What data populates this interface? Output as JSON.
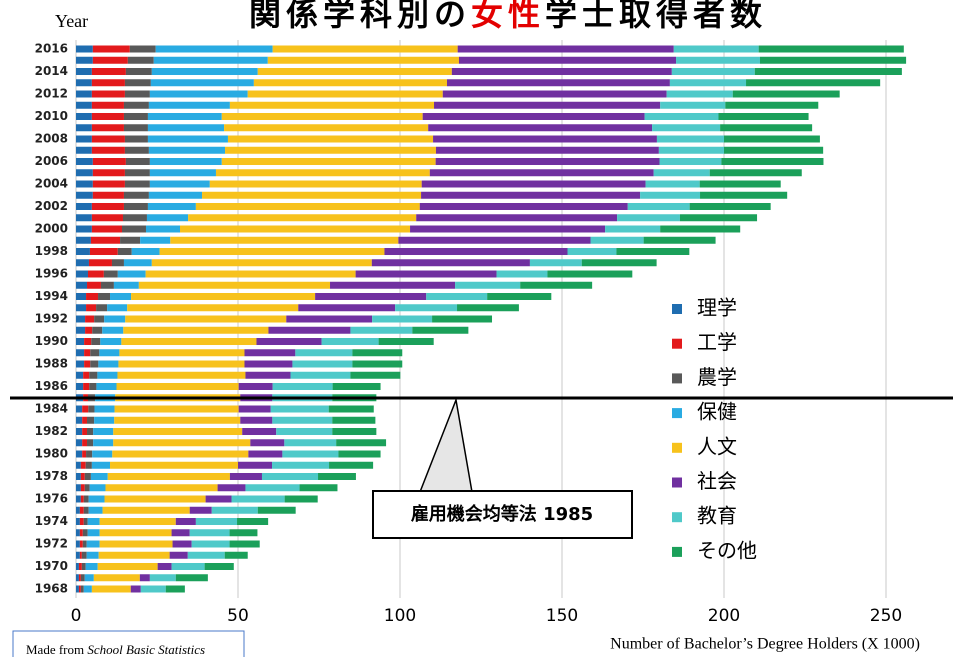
{
  "chart_data": {
    "type": "stacked-barh",
    "title_parts": [
      "関係学科別の",
      "女性",
      "学士取得者数"
    ],
    "y_label": "Year",
    "x_label": "Number of Bachelor’s Degree Holders (X 1000)",
    "annotation": "雇用機会均等法 1985",
    "source": {
      "lead": "Made from",
      "italic": "School Basic Statistics"
    },
    "categories": [
      1968,
      null,
      1970,
      null,
      1972,
      null,
      1974,
      null,
      1976,
      null,
      1978,
      null,
      1980,
      null,
      1982,
      null,
      1984,
      null,
      1986,
      null,
      1988,
      null,
      1990,
      null,
      1992,
      null,
      1994,
      null,
      1996,
      null,
      1998,
      null,
      2000,
      null,
      2002,
      null,
      2004,
      null,
      2006,
      null,
      2008,
      null,
      2010,
      null,
      2012,
      null,
      2014,
      null,
      2016
    ],
    "series": [
      {
        "name": "理学",
        "color": "#1f6db0",
        "values": [
          0.9,
          0.9,
          0.9,
          1.2,
          1.2,
          1.2,
          1.2,
          1.2,
          1.5,
          1.5,
          1.5,
          1.5,
          1.9,
          1.9,
          1.9,
          1.9,
          1.9,
          2.2,
          2.2,
          2.2,
          2.5,
          2.5,
          2.5,
          2.8,
          2.8,
          3.1,
          3.1,
          3.4,
          3.7,
          4.0,
          4.3,
          4.6,
          4.9,
          4.9,
          4.9,
          5.2,
          5.2,
          5.2,
          5.2,
          4.9,
          4.9,
          4.9,
          4.9,
          4.9,
          4.9,
          4.9,
          4.9,
          5.2,
          5.2
        ]
      },
      {
        "name": "工学",
        "color": "#e31a1c",
        "values": [
          0.6,
          0.6,
          0.9,
          0.6,
          0.9,
          0.9,
          1.2,
          1.2,
          0.9,
          1.2,
          1.2,
          1.5,
          1.2,
          1.5,
          1.5,
          1.5,
          1.9,
          1.5,
          1.9,
          1.9,
          1.9,
          1.9,
          2.2,
          2.2,
          2.8,
          3.1,
          3.7,
          4.3,
          4.9,
          7.1,
          8.6,
          9.0,
          9.3,
          9.6,
          9.9,
          9.6,
          9.9,
          9.9,
          10.2,
          10.2,
          10.2,
          9.9,
          9.9,
          9.9,
          10.2,
          10.2,
          10.5,
          10.8,
          11.4
        ]
      },
      {
        "name": "農学",
        "color": "#595959",
        "values": [
          0.9,
          1.2,
          1.2,
          1.5,
          1.2,
          1.5,
          1.2,
          1.5,
          1.5,
          1.5,
          1.9,
          1.9,
          1.9,
          1.9,
          1.9,
          2.2,
          1.9,
          2.2,
          2.2,
          2.5,
          2.5,
          2.8,
          2.8,
          3.1,
          3.1,
          3.4,
          3.7,
          4.0,
          4.3,
          3.7,
          4.3,
          6.2,
          7.4,
          7.4,
          7.4,
          7.7,
          7.7,
          7.7,
          7.4,
          7.4,
          7.1,
          7.4,
          7.4,
          7.7,
          7.7,
          8.0,
          8.0,
          8.0,
          8.0
        ]
      },
      {
        "name": "保健",
        "color": "#29abe2",
        "values": [
          2.5,
          2.8,
          3.7,
          3.7,
          4.0,
          3.7,
          3.7,
          4.3,
          4.9,
          4.9,
          5.2,
          5.6,
          6.2,
          6.2,
          6.2,
          6.2,
          6.2,
          6.2,
          6.2,
          6.2,
          6.2,
          6.2,
          6.5,
          6.5,
          6.5,
          6.2,
          6.5,
          7.7,
          8.6,
          8.6,
          8.6,
          9.3,
          10.5,
          12.7,
          14.8,
          16.4,
          18.5,
          20.4,
          22.2,
          23.5,
          24.7,
          23.5,
          22.8,
          25.0,
          30.2,
          31.8,
          32.7,
          35.2,
          36.1
        ]
      },
      {
        "name": "人文",
        "color": "#f7c21c",
        "values": [
          12.0,
          14.2,
          18.5,
          21.9,
          22.5,
          22.2,
          23.5,
          26.9,
          31.2,
          34.6,
          37.7,
          39.5,
          42.0,
          42.3,
          39.8,
          38.9,
          38.3,
          38.6,
          37.7,
          39.5,
          38.9,
          38.6,
          41.7,
          44.8,
          49.7,
          52.8,
          56.8,
          59.0,
          64.8,
          67.9,
          69.4,
          70.4,
          71.0,
          70.4,
          69.1,
          67.6,
          65.4,
          66.0,
          66.0,
          65.1,
          63.3,
          63.0,
          62.0,
          63.0,
          60.2,
          59.6,
          59.9,
          59.0,
          57.1
        ]
      },
      {
        "name": "社会",
        "color": "#7030a0",
        "values": [
          3.1,
          3.1,
          4.3,
          5.6,
          5.9,
          5.6,
          6.2,
          6.8,
          8.0,
          8.6,
          9.9,
          10.5,
          10.5,
          10.5,
          10.5,
          9.9,
          9.9,
          9.9,
          10.5,
          13.9,
          14.8,
          15.7,
          20.1,
          25.3,
          26.5,
          29.9,
          34.3,
          38.6,
          43.5,
          48.8,
          56.5,
          59.3,
          60.2,
          62.0,
          64.2,
          67.6,
          69.1,
          69.1,
          69.1,
          68.8,
          69.1,
          69.1,
          68.5,
          69.8,
          69.1,
          68.8,
          67.9,
          67.0,
          66.7
        ]
      },
      {
        "name": "教育",
        "color": "#4fc9c9",
        "values": [
          7.7,
          8.0,
          10.2,
          11.4,
          11.7,
          12.3,
          12.7,
          14.2,
          16.4,
          16.7,
          17.3,
          17.6,
          17.3,
          16.0,
          17.3,
          18.5,
          17.9,
          18.5,
          18.5,
          18.5,
          18.5,
          17.6,
          17.6,
          19.1,
          18.5,
          19.1,
          18.8,
          20.1,
          15.7,
          16.0,
          15.1,
          16.4,
          17.0,
          19.4,
          19.1,
          18.5,
          16.7,
          17.3,
          19.1,
          20.1,
          20.7,
          21.0,
          22.8,
          20.1,
          20.4,
          23.5,
          25.6,
          25.9,
          26.2
        ]
      },
      {
        "name": "その他",
        "color": "#1ba05a",
        "values": [
          5.9,
          9.9,
          9.0,
          7.1,
          9.3,
          8.6,
          9.6,
          11.7,
          10.2,
          11.7,
          11.7,
          13.6,
          13.0,
          15.4,
          13.6,
          13.3,
          13.9,
          13.6,
          14.8,
          15.4,
          15.4,
          15.4,
          17.0,
          17.3,
          18.5,
          19.1,
          19.8,
          22.2,
          26.2,
          23.1,
          22.5,
          22.2,
          24.7,
          23.8,
          25.0,
          26.9,
          25.0,
          28.4,
          31.5,
          30.6,
          29.6,
          28.4,
          27.8,
          28.7,
          33.0,
          41.4,
          45.4,
          45.1,
          44.8
        ]
      }
    ],
    "xlim": [
      0,
      265
    ],
    "xticks": [
      0,
      50,
      100,
      150,
      200,
      250
    ],
    "grid": true,
    "legend": "right"
  }
}
